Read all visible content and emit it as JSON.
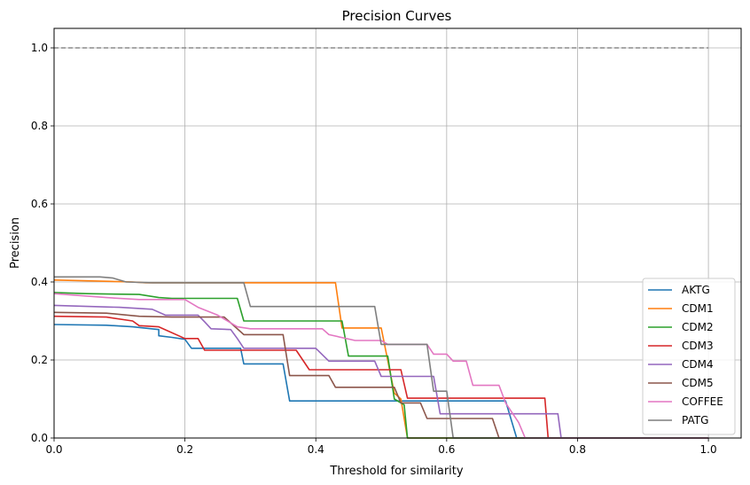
{
  "chart_data": {
    "type": "line",
    "title": "Precision Curves",
    "xlabel": "Threshold for similarity",
    "ylabel": "Precision",
    "xlim": [
      0.0,
      1.05
    ],
    "ylim": [
      0.0,
      1.05
    ],
    "xticks": [
      "0.0",
      "0.2",
      "0.4",
      "0.6",
      "0.8",
      "1.0"
    ],
    "yticks": [
      "0.0",
      "0.2",
      "0.4",
      "0.6",
      "0.8",
      "1.0"
    ],
    "grid": true,
    "legend_position": "lower-right",
    "reference_line": {
      "y": 1.0,
      "x_range": [
        0.0,
        1.0
      ],
      "style": "dashed",
      "color": "#8c8c8c"
    },
    "series": [
      {
        "name": "AKTG",
        "color": "#1f77b4",
        "points": [
          [
            0,
            0.291
          ],
          [
            0.08,
            0.289
          ],
          [
            0.12,
            0.285
          ],
          [
            0.16,
            0.278
          ],
          [
            0.16,
            0.262
          ],
          [
            0.18,
            0.258
          ],
          [
            0.2,
            0.253
          ],
          [
            0.21,
            0.23
          ],
          [
            0.285,
            0.23
          ],
          [
            0.29,
            0.19
          ],
          [
            0.35,
            0.19
          ],
          [
            0.36,
            0.095
          ],
          [
            0.69,
            0.095
          ],
          [
            0.707,
            0.0
          ],
          [
            1.0,
            0.0
          ]
        ]
      },
      {
        "name": "CDM1",
        "color": "#ff7f0e",
        "points": [
          [
            0,
            0.405
          ],
          [
            0.05,
            0.403
          ],
          [
            0.12,
            0.4
          ],
          [
            0.14,
            0.398
          ],
          [
            0.43,
            0.398
          ],
          [
            0.44,
            0.282
          ],
          [
            0.5,
            0.282
          ],
          [
            0.52,
            0.115
          ],
          [
            0.53,
            0.1
          ],
          [
            0.54,
            0.0
          ],
          [
            1.0,
            0.0
          ]
        ]
      },
      {
        "name": "CDM2",
        "color": "#2ca02c",
        "points": [
          [
            0,
            0.373
          ],
          [
            0.05,
            0.37
          ],
          [
            0.13,
            0.368
          ],
          [
            0.16,
            0.36
          ],
          [
            0.18,
            0.358
          ],
          [
            0.28,
            0.358
          ],
          [
            0.29,
            0.3
          ],
          [
            0.44,
            0.3
          ],
          [
            0.45,
            0.21
          ],
          [
            0.51,
            0.21
          ],
          [
            0.52,
            0.1
          ],
          [
            0.535,
            0.085
          ],
          [
            0.54,
            0.0
          ],
          [
            1.0,
            0.0
          ]
        ]
      },
      {
        "name": "CDM3",
        "color": "#d62728",
        "points": [
          [
            0,
            0.312
          ],
          [
            0.08,
            0.31
          ],
          [
            0.12,
            0.3
          ],
          [
            0.13,
            0.288
          ],
          [
            0.16,
            0.285
          ],
          [
            0.2,
            0.255
          ],
          [
            0.22,
            0.255
          ],
          [
            0.23,
            0.225
          ],
          [
            0.37,
            0.225
          ],
          [
            0.39,
            0.175
          ],
          [
            0.53,
            0.175
          ],
          [
            0.54,
            0.102
          ],
          [
            0.75,
            0.102
          ],
          [
            0.755,
            0.0
          ],
          [
            1.0,
            0.0
          ]
        ]
      },
      {
        "name": "CDM4",
        "color": "#9467bd",
        "points": [
          [
            0,
            0.34
          ],
          [
            0.1,
            0.335
          ],
          [
            0.15,
            0.33
          ],
          [
            0.17,
            0.315
          ],
          [
            0.22,
            0.315
          ],
          [
            0.23,
            0.298
          ],
          [
            0.24,
            0.28
          ],
          [
            0.27,
            0.278
          ],
          [
            0.28,
            0.255
          ],
          [
            0.29,
            0.23
          ],
          [
            0.4,
            0.23
          ],
          [
            0.42,
            0.197
          ],
          [
            0.49,
            0.197
          ],
          [
            0.5,
            0.158
          ],
          [
            0.58,
            0.158
          ],
          [
            0.59,
            0.062
          ],
          [
            0.77,
            0.062
          ],
          [
            0.775,
            0.0
          ],
          [
            1.0,
            0.0
          ]
        ]
      },
      {
        "name": "CDM5",
        "color": "#8c564b",
        "points": [
          [
            0,
            0.322
          ],
          [
            0.08,
            0.32
          ],
          [
            0.13,
            0.312
          ],
          [
            0.18,
            0.31
          ],
          [
            0.26,
            0.31
          ],
          [
            0.29,
            0.265
          ],
          [
            0.35,
            0.265
          ],
          [
            0.36,
            0.16
          ],
          [
            0.42,
            0.16
          ],
          [
            0.43,
            0.13
          ],
          [
            0.52,
            0.13
          ],
          [
            0.53,
            0.09
          ],
          [
            0.56,
            0.09
          ],
          [
            0.57,
            0.05
          ],
          [
            0.67,
            0.05
          ],
          [
            0.68,
            0.0
          ],
          [
            1.0,
            0.0
          ]
        ]
      },
      {
        "name": "COFFEE",
        "color": "#e377c2",
        "points": [
          [
            0,
            0.37
          ],
          [
            0.08,
            0.36
          ],
          [
            0.13,
            0.355
          ],
          [
            0.2,
            0.355
          ],
          [
            0.22,
            0.335
          ],
          [
            0.25,
            0.315
          ],
          [
            0.28,
            0.285
          ],
          [
            0.3,
            0.28
          ],
          [
            0.41,
            0.28
          ],
          [
            0.42,
            0.265
          ],
          [
            0.46,
            0.25
          ],
          [
            0.5,
            0.25
          ],
          [
            0.51,
            0.24
          ],
          [
            0.57,
            0.24
          ],
          [
            0.58,
            0.215
          ],
          [
            0.6,
            0.215
          ],
          [
            0.61,
            0.197
          ],
          [
            0.63,
            0.197
          ],
          [
            0.64,
            0.135
          ],
          [
            0.68,
            0.135
          ],
          [
            0.69,
            0.09
          ],
          [
            0.71,
            0.04
          ],
          [
            0.72,
            0.0
          ],
          [
            1.0,
            0.0
          ]
        ]
      },
      {
        "name": "PATG",
        "color": "#7f7f7f",
        "points": [
          [
            0,
            0.413
          ],
          [
            0.07,
            0.413
          ],
          [
            0.09,
            0.41
          ],
          [
            0.11,
            0.4
          ],
          [
            0.15,
            0.398
          ],
          [
            0.29,
            0.398
          ],
          [
            0.3,
            0.337
          ],
          [
            0.49,
            0.337
          ],
          [
            0.5,
            0.24
          ],
          [
            0.57,
            0.24
          ],
          [
            0.58,
            0.12
          ],
          [
            0.6,
            0.12
          ],
          [
            0.61,
            0.0
          ],
          [
            1.0,
            0.0
          ]
        ]
      }
    ]
  }
}
